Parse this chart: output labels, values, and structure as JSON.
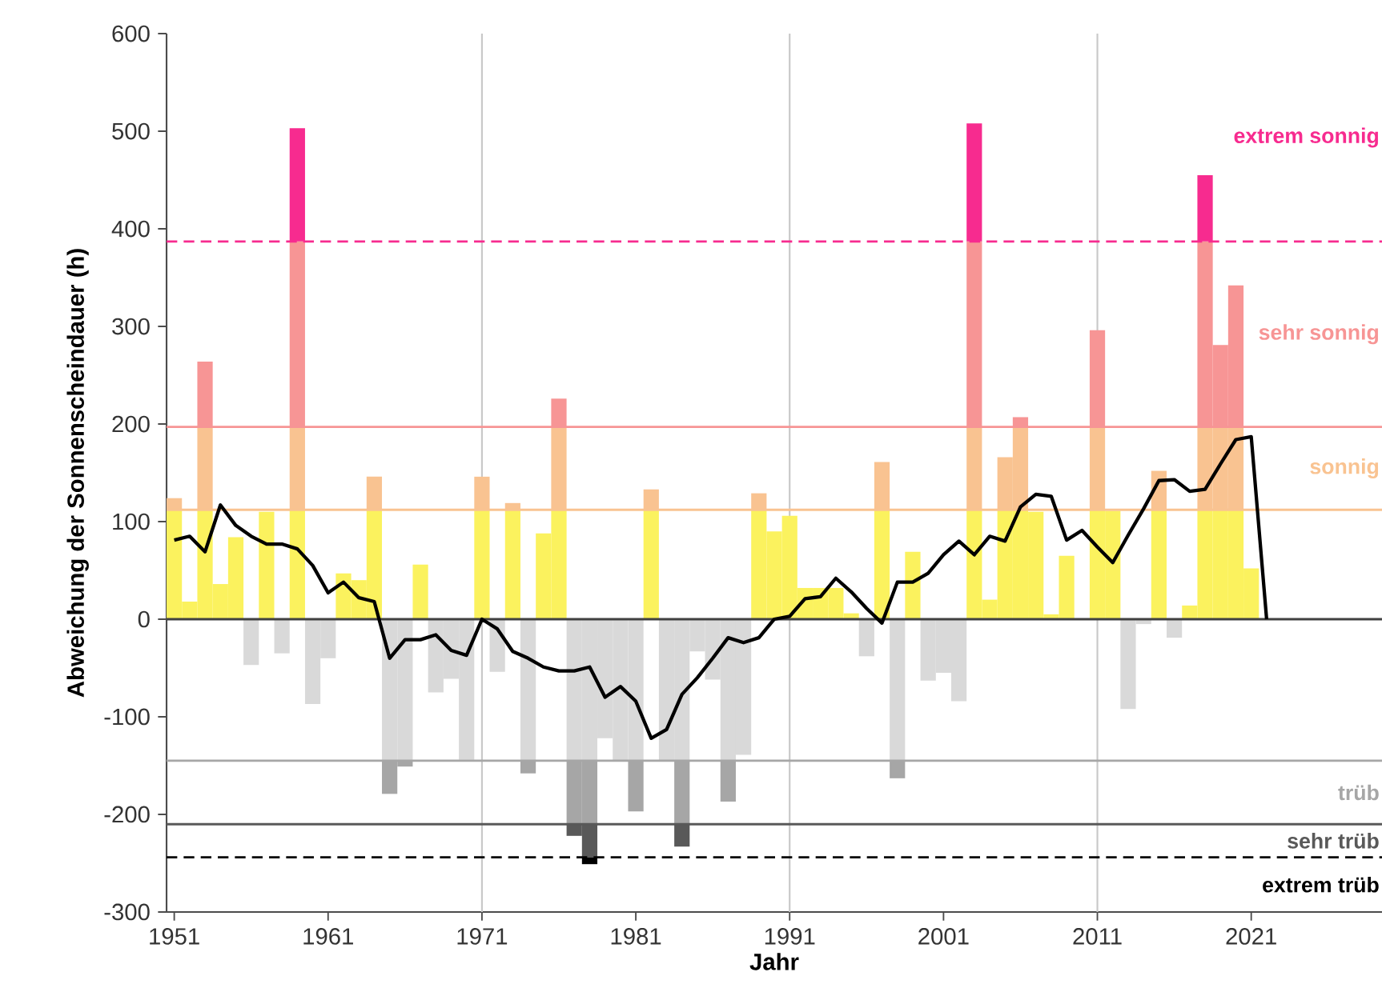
{
  "chart_data": {
    "type": "bar",
    "stacked": true,
    "xlabel": "Jahr",
    "ylabel": "Abweichung der Sonnenscheindauer (h)",
    "xlim": [
      1950.5,
      2029.5
    ],
    "xticks": [
      1951,
      1961,
      1971,
      1981,
      1991,
      2001,
      2011,
      2021
    ],
    "ylim": [
      -300,
      600
    ],
    "yticks": [
      -300,
      -200,
      -100,
      0,
      100,
      200,
      300,
      400,
      500,
      600
    ],
    "x": [
      1951,
      1952,
      1953,
      1954,
      1955,
      1956,
      1957,
      1958,
      1959,
      1960,
      1961,
      1962,
      1963,
      1964,
      1965,
      1966,
      1967,
      1968,
      1969,
      1970,
      1971,
      1972,
      1973,
      1974,
      1975,
      1976,
      1977,
      1978,
      1979,
      1980,
      1981,
      1982,
      1983,
      1984,
      1985,
      1986,
      1987,
      1988,
      1989,
      1990,
      1991,
      1992,
      1993,
      1994,
      1995,
      1996,
      1997,
      1998,
      1999,
      2000,
      2001,
      2002,
      2003,
      2004,
      2005,
      2006,
      2007,
      2008,
      2009,
      2010,
      2011,
      2012,
      2013,
      2014,
      2015,
      2016,
      2017,
      2018,
      2019,
      2020,
      2021
    ],
    "series": [
      {
        "color": "#fbf25e",
        "values": [
          112,
          18,
          112,
          36,
          84,
          null,
          110,
          null,
          112,
          null,
          null,
          47,
          40,
          112,
          null,
          null,
          56,
          null,
          null,
          null,
          112,
          null,
          112,
          null,
          88,
          112,
          null,
          null,
          null,
          null,
          null,
          112,
          null,
          null,
          null,
          null,
          null,
          null,
          112,
          90,
          106,
          32,
          32,
          32,
          6,
          null,
          112,
          null,
          69,
          null,
          null,
          null,
          112,
          20,
          112,
          112,
          110,
          5,
          65,
          null,
          112,
          111,
          null,
          null,
          112,
          null,
          14,
          112,
          112,
          112,
          52
        ]
      },
      {
        "color": "#f9c391",
        "values": [
          12,
          null,
          85,
          null,
          null,
          null,
          null,
          null,
          85,
          null,
          null,
          null,
          null,
          34,
          null,
          null,
          null,
          null,
          null,
          null,
          34,
          null,
          7,
          null,
          null,
          85,
          null,
          null,
          null,
          null,
          null,
          21,
          null,
          null,
          null,
          null,
          null,
          null,
          17,
          null,
          null,
          null,
          null,
          null,
          null,
          null,
          49,
          null,
          null,
          null,
          null,
          null,
          85,
          null,
          54,
          85,
          null,
          null,
          null,
          null,
          85,
          null,
          null,
          null,
          40,
          null,
          null,
          85,
          85,
          85,
          null
        ]
      },
      {
        "color": "#f79595",
        "values": [
          null,
          null,
          67,
          null,
          null,
          null,
          null,
          null,
          190,
          null,
          null,
          null,
          null,
          null,
          null,
          null,
          null,
          null,
          null,
          null,
          null,
          null,
          null,
          null,
          null,
          29,
          null,
          null,
          null,
          null,
          null,
          null,
          null,
          null,
          null,
          null,
          null,
          null,
          null,
          null,
          null,
          null,
          null,
          null,
          null,
          null,
          null,
          null,
          null,
          null,
          null,
          null,
          190,
          null,
          null,
          10,
          null,
          null,
          null,
          null,
          99,
          null,
          null,
          null,
          null,
          null,
          null,
          190,
          84,
          145,
          null
        ]
      },
      {
        "color": "#f72b8f",
        "values": [
          null,
          null,
          null,
          null,
          null,
          null,
          null,
          null,
          116,
          null,
          null,
          null,
          null,
          null,
          null,
          null,
          null,
          null,
          null,
          null,
          null,
          null,
          null,
          null,
          null,
          null,
          null,
          null,
          null,
          null,
          null,
          null,
          null,
          null,
          null,
          null,
          null,
          null,
          null,
          null,
          null,
          null,
          null,
          null,
          null,
          null,
          null,
          null,
          null,
          null,
          null,
          null,
          121,
          null,
          null,
          null,
          null,
          null,
          null,
          null,
          null,
          null,
          null,
          null,
          null,
          null,
          null,
          68,
          null,
          null,
          null
        ]
      },
      {
        "color": "#d9d9d9",
        "values": [
          null,
          null,
          null,
          null,
          null,
          -47,
          null,
          -35,
          null,
          -87,
          -40,
          null,
          null,
          null,
          -145,
          -145,
          null,
          -75,
          -61,
          -144,
          null,
          -54,
          null,
          -145,
          null,
          null,
          -145,
          -145,
          -122,
          -145,
          -145,
          null,
          -145,
          -145,
          -33,
          -62,
          -145,
          -139,
          null,
          null,
          null,
          null,
          null,
          null,
          null,
          -38,
          null,
          -145,
          null,
          -63,
          -55,
          -84,
          null,
          null,
          null,
          null,
          null,
          null,
          null,
          null,
          null,
          null,
          -92,
          -5,
          null,
          -19,
          null,
          null,
          null,
          null,
          null
        ]
      },
      {
        "color": "#a6a6a6",
        "values": [
          null,
          null,
          null,
          null,
          null,
          null,
          null,
          null,
          null,
          null,
          null,
          null,
          null,
          null,
          -34,
          -6,
          null,
          null,
          null,
          null,
          null,
          null,
          null,
          -13,
          null,
          null,
          -65,
          -65,
          null,
          null,
          -52,
          null,
          null,
          -65,
          null,
          null,
          -42,
          null,
          null,
          null,
          null,
          null,
          null,
          null,
          null,
          null,
          null,
          -18,
          null,
          null,
          null,
          null,
          null,
          null,
          null,
          null,
          null,
          null,
          null,
          null,
          null,
          null,
          null,
          null,
          null,
          null,
          null,
          null,
          null,
          null,
          null
        ]
      },
      {
        "color": "#595959",
        "values": [
          null,
          null,
          null,
          null,
          null,
          null,
          null,
          null,
          null,
          null,
          null,
          null,
          null,
          null,
          null,
          null,
          null,
          null,
          null,
          null,
          null,
          null,
          null,
          null,
          null,
          null,
          -12,
          -34,
          null,
          null,
          null,
          null,
          null,
          -23,
          null,
          null,
          null,
          null,
          null,
          null,
          null,
          null,
          null,
          null,
          null,
          null,
          null,
          null,
          null,
          null,
          null,
          null,
          null,
          null,
          null,
          null,
          null,
          null,
          null,
          null,
          null,
          null,
          null,
          null,
          null,
          null,
          null,
          null,
          null,
          null,
          null
        ]
      },
      {
        "color": "#000000",
        "values": [
          null,
          null,
          null,
          null,
          null,
          null,
          null,
          null,
          null,
          null,
          null,
          null,
          null,
          null,
          null,
          null,
          null,
          null,
          null,
          null,
          null,
          null,
          null,
          null,
          null,
          null,
          null,
          -7,
          null,
          null,
          null,
          null,
          null,
          null,
          null,
          null,
          null,
          null,
          null,
          null,
          null,
          null,
          null,
          null,
          null,
          null,
          null,
          null,
          null,
          null,
          null,
          null,
          null,
          null,
          null,
          null,
          null,
          null,
          null,
          null,
          null,
          null,
          null,
          null,
          null,
          null,
          null,
          null,
          null,
          null,
          null
        ]
      },
      {
        "type": "line",
        "color": "#000000",
        "x": [
          1951,
          1952,
          1953,
          1954,
          1955,
          1956,
          1957,
          1958,
          1959,
          1960,
          1961,
          1962,
          1963,
          1964,
          1965,
          1966,
          1967,
          1968,
          1969,
          1970,
          1971,
          1972,
          1973,
          1974,
          1975,
          1976,
          1977,
          1978,
          1979,
          1980,
          1981,
          1982,
          1983,
          1984,
          1985,
          1986,
          1987,
          1988,
          1989,
          1990,
          1991,
          1992,
          1993,
          1994,
          1995,
          1996,
          1997,
          1998,
          1999,
          2000,
          2001,
          2002,
          2003,
          2004,
          2005,
          2006,
          2007,
          2008,
          2009,
          2010,
          2011,
          2012,
          2013,
          2014,
          2015,
          2016,
          2017,
          2018,
          2019,
          2020,
          2021,
          2022
        ],
        "values": [
          81,
          85,
          69,
          117,
          96,
          85,
          77,
          77,
          72,
          55,
          27,
          38,
          22,
          18,
          -40,
          -21,
          -21,
          -16,
          -32,
          -37,
          0,
          -10,
          -33,
          -40,
          -49,
          -53,
          -53,
          -49,
          -80,
          -69,
          -84,
          -122,
          -113,
          -77,
          -60,
          -40,
          -19,
          -24,
          -19,
          0,
          3,
          21,
          23,
          42,
          28,
          11,
          -4,
          38,
          38,
          47,
          66,
          80,
          66,
          85,
          80,
          115,
          128,
          126,
          81,
          91,
          74,
          58,
          86,
          113,
          142,
          143,
          131,
          133,
          159,
          184,
          187,
          0
        ]
      }
    ],
    "ref_lines": [
      {
        "axis": "x",
        "value": 1971,
        "color": "#c8c8c8"
      },
      {
        "axis": "x",
        "value": 1991,
        "color": "#c8c8c8"
      },
      {
        "axis": "x",
        "value": 2011,
        "color": "#c8c8c8"
      },
      {
        "axis": "y",
        "value": 0,
        "color": "#404040"
      },
      {
        "axis": "y",
        "value": 387,
        "label": "extrem sonnig",
        "color": "#f72b8f",
        "line_style": "dashed"
      },
      {
        "axis": "y",
        "value": 197,
        "label": "sehr sonnig",
        "color": "#f79595"
      },
      {
        "axis": "y",
        "value": 112,
        "label": "sonnig",
        "color": "#f9c391"
      },
      {
        "axis": "y",
        "value": -145,
        "label": "trüb",
        "color": "#a6a6a6"
      },
      {
        "axis": "y",
        "value": -210,
        "label": "sehr trüb",
        "color": "#595959"
      },
      {
        "axis": "y",
        "value": -244,
        "label": "extrem trüb",
        "color": "#000000",
        "line_style": "dashed"
      }
    ]
  }
}
